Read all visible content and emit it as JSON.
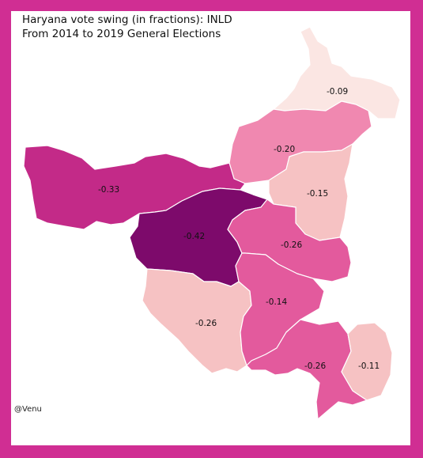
{
  "title": {
    "line1": "Haryana vote swing (in fractions): INLD",
    "line2": "From 2014 to 2019 General Elections"
  },
  "credit": "@Venu",
  "colors": {
    "border": "#d02e93",
    "background": "#ffffff",
    "scale": [
      "#fbe6e3",
      "#f6c2c3",
      "#f088b0",
      "#e35a9d",
      "#c32a88",
      "#7d0a6b"
    ]
  },
  "chart_data": {
    "type": "choropleth",
    "regions": [
      {
        "label": "-0.09",
        "value": -0.09,
        "color": "#fbe6e3"
      },
      {
        "label": "-0.20",
        "value": -0.2,
        "color": "#f088b0"
      },
      {
        "label": "-0.33",
        "value": -0.33,
        "color": "#c32a88"
      },
      {
        "label": "-0.15",
        "value": -0.15,
        "color": "#f6c2c3"
      },
      {
        "label": "-0.42",
        "value": -0.42,
        "color": "#7d0a6b"
      },
      {
        "label": "-0.26",
        "value": -0.26,
        "color": "#e35a9d"
      },
      {
        "label": "-0.14",
        "value": -0.14,
        "color": "#f6c2c3"
      },
      {
        "label": "-0.26",
        "value": -0.26,
        "color": "#e35a9d"
      },
      {
        "label": "-0.26",
        "value": -0.26,
        "color": "#e35a9d"
      },
      {
        "label": "-0.11",
        "value": -0.11,
        "color": "#f6c2c3"
      }
    ]
  }
}
